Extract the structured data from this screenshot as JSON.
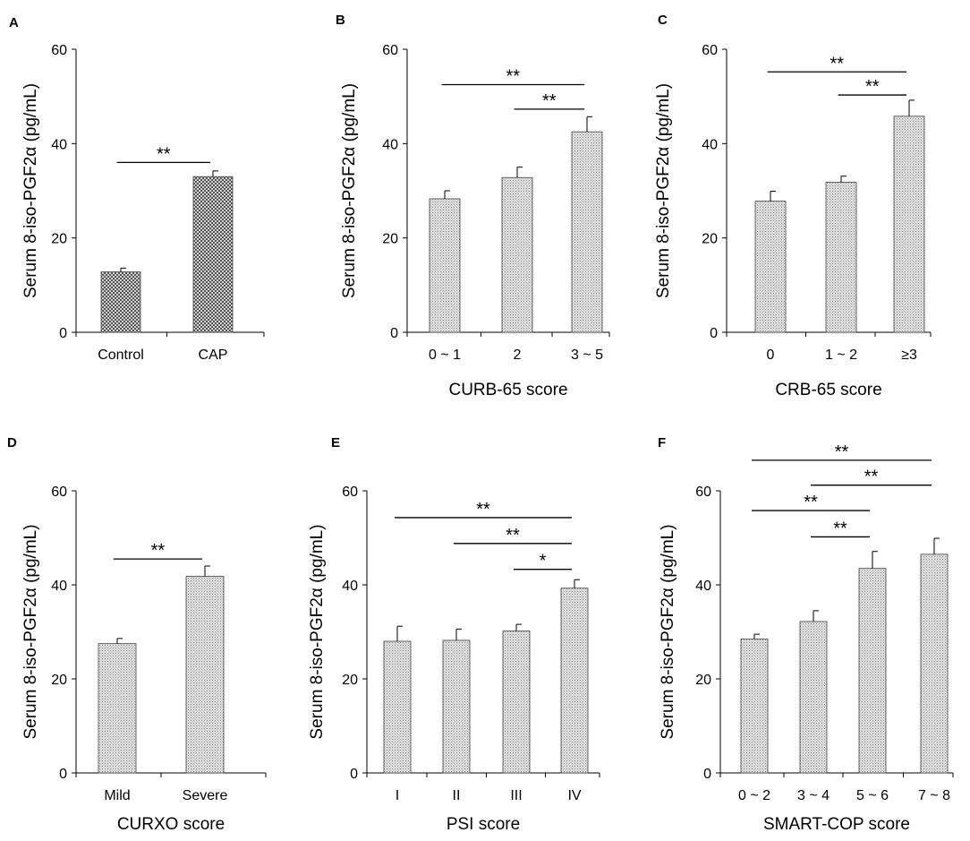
{
  "figure": {
    "colors": {
      "axis": "#000000",
      "bar_fill": "#d8d8d8",
      "bar_stroke": "#444444",
      "checker_dark": "#555555"
    }
  },
  "chart_data": [
    {
      "panel": "A",
      "type": "bar",
      "pattern": "checker",
      "ylabel": "Serum 8-iso-PGF2α (pg/mL)",
      "xlabel": "",
      "ylim": [
        0,
        60
      ],
      "yticks": [
        0,
        20,
        40,
        60
      ],
      "categories": [
        "Control",
        "CAP"
      ],
      "values": [
        12.8,
        33
      ],
      "errors": [
        0.8,
        1.2
      ],
      "significance": [
        {
          "from": 0,
          "to": 1,
          "label": "**",
          "y": 36
        }
      ]
    },
    {
      "panel": "B",
      "type": "bar",
      "pattern": "dots",
      "ylabel": "Serum 8-iso-PGF2α (pg/mL)",
      "xlabel": "CURB-65 score",
      "ylim": [
        0,
        60
      ],
      "yticks": [
        0,
        20,
        40,
        60
      ],
      "categories": [
        "0 ~ 1",
        "2",
        "3 ~ 5"
      ],
      "values": [
        28.3,
        32.8,
        42.5
      ],
      "errors": [
        1.7,
        2.2,
        3.2
      ],
      "significance": [
        {
          "from": 0,
          "to": 2,
          "label": "**",
          "y": 52.5
        },
        {
          "from": 1,
          "to": 2,
          "label": "**",
          "y": 47.3
        }
      ]
    },
    {
      "panel": "C",
      "type": "bar",
      "pattern": "dots",
      "ylabel": "Serum 8-iso-PGF2α (pg/mL)",
      "xlabel": "CRB-65 score",
      "ylim": [
        0,
        60
      ],
      "yticks": [
        0,
        20,
        40,
        60
      ],
      "categories": [
        "0",
        "1 ~ 2",
        "≥3"
      ],
      "values": [
        27.8,
        31.8,
        45.8
      ],
      "errors": [
        2.1,
        1.3,
        3.4
      ],
      "significance": [
        {
          "from": 0,
          "to": 2,
          "label": "**",
          "y": 55.2
        },
        {
          "from": 1,
          "to": 2,
          "label": "**",
          "y": 50.3
        }
      ]
    },
    {
      "panel": "D",
      "type": "bar",
      "pattern": "dots",
      "ylabel": "Serum 8-iso-PGF2α (pg/mL)",
      "xlabel": "CURXO score",
      "ylim": [
        0,
        60
      ],
      "yticks": [
        0,
        20,
        40,
        60
      ],
      "categories": [
        "Mild",
        "Severe"
      ],
      "values": [
        27.5,
        41.8
      ],
      "errors": [
        1.1,
        2.2
      ],
      "significance": [
        {
          "from": 0,
          "to": 1,
          "label": "**",
          "y": 45.5
        }
      ]
    },
    {
      "panel": "E",
      "type": "bar",
      "pattern": "dots",
      "ylabel": "Serum 8-iso-PGF2α (pg/mL)",
      "xlabel": "PSI score",
      "ylim": [
        0,
        60
      ],
      "yticks": [
        0,
        20,
        40,
        60
      ],
      "categories": [
        "I",
        "II",
        "III",
        "IV"
      ],
      "values": [
        28,
        28.2,
        30.2,
        39.3
      ],
      "errors": [
        3.2,
        2.4,
        1.4,
        1.8
      ],
      "significance": [
        {
          "from": 0,
          "to": 3,
          "label": "**",
          "y": 54.3
        },
        {
          "from": 1,
          "to": 3,
          "label": "**",
          "y": 48.8
        },
        {
          "from": 2,
          "to": 3,
          "label": "*",
          "y": 43.3
        }
      ]
    },
    {
      "panel": "F",
      "type": "bar",
      "pattern": "dots",
      "ylabel": "Serum 8-iso-PGF2α (pg/mL)",
      "xlabel": "SMART-COP score",
      "ylim": [
        0,
        60
      ],
      "yticks": [
        0,
        20,
        40,
        60
      ],
      "categories": [
        "0 ~ 2",
        "3 ~ 4",
        "5 ~ 6",
        "7 ~ 8"
      ],
      "values": [
        28.5,
        32.2,
        43.5,
        46.5
      ],
      "errors": [
        1,
        2.3,
        3.6,
        3.4
      ],
      "significance": [
        {
          "from": 0,
          "to": 3,
          "label": "**",
          "y": 66.5
        },
        {
          "from": 1,
          "to": 3,
          "label": "**",
          "y": 61.2
        },
        {
          "from": 0,
          "to": 2,
          "label": "**",
          "y": 55.8
        },
        {
          "from": 1,
          "to": 2,
          "label": "**",
          "y": 50.2
        }
      ]
    }
  ]
}
